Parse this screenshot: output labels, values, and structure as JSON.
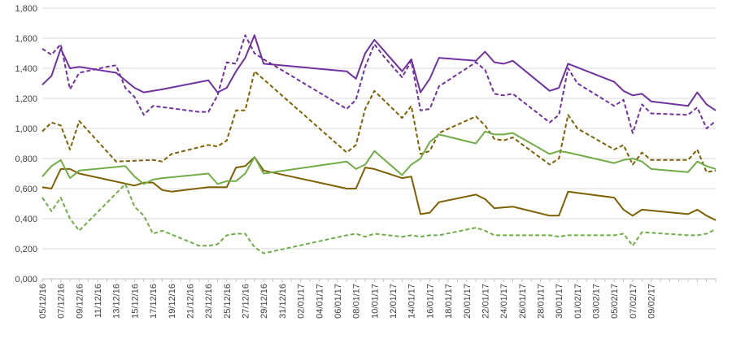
{
  "chart_data": {
    "type": "line",
    "x_ticks": [
      "05/12/16",
      "07/12/16",
      "09/12/16",
      "11/12/16",
      "13/12/16",
      "15/12/16",
      "17/12/16",
      "19/12/16",
      "21/12/16",
      "23/12/16",
      "25/12/16",
      "27/12/16",
      "29/12/16",
      "31/12/16",
      "02/01/17",
      "04/01/17",
      "06/01/17",
      "08/01/17",
      "10/01/17",
      "12/01/17",
      "14/01/17",
      "16/01/17",
      "18/01/17",
      "20/01/17",
      "22/01/17",
      "24/01/17",
      "26/01/17",
      "28/01/17",
      "30/01/17",
      "01/02/17",
      "03/02/17",
      "05/02/17",
      "07/02/17",
      "09/02/17"
    ],
    "y_ticks": [
      "0,000",
      "0,200",
      "0,400",
      "0,600",
      "0,800",
      "1,000",
      "1,200",
      "1,400",
      "1,600",
      "1,800"
    ],
    "ylim": [
      0,
      1.8
    ],
    "x_start_date": "05/12/16",
    "x_end_date": "09/02/17",
    "grid": true,
    "series": [
      {
        "color": "#7030a0",
        "dash": "solid",
        "points": [
          [
            0,
            1.29
          ],
          [
            1,
            1.35
          ],
          [
            2,
            1.53
          ],
          [
            3,
            1.4
          ],
          [
            4,
            1.41
          ],
          [
            8,
            1.37
          ],
          [
            9,
            1.32
          ],
          [
            10,
            1.27
          ],
          [
            11,
            1.24
          ],
          [
            13,
            1.26
          ],
          [
            18,
            1.32
          ],
          [
            19,
            1.24
          ],
          [
            20,
            1.27
          ],
          [
            21,
            1.38
          ],
          [
            22,
            1.47
          ],
          [
            23,
            1.62
          ],
          [
            24,
            1.43
          ],
          [
            33,
            1.38
          ],
          [
            34,
            1.33
          ],
          [
            35,
            1.5
          ],
          [
            36,
            1.59
          ],
          [
            37,
            1.52
          ],
          [
            39,
            1.38
          ],
          [
            40,
            1.46
          ],
          [
            41,
            1.24
          ],
          [
            42,
            1.33
          ],
          [
            43,
            1.47
          ],
          [
            47,
            1.45
          ],
          [
            48,
            1.51
          ],
          [
            49,
            1.44
          ],
          [
            50,
            1.43
          ],
          [
            51,
            1.45
          ],
          [
            55,
            1.25
          ],
          [
            56,
            1.27
          ],
          [
            57,
            1.43
          ],
          [
            62,
            1.31
          ],
          [
            63,
            1.25
          ],
          [
            64,
            1.22
          ],
          [
            65,
            1.23
          ],
          [
            66,
            1.18
          ],
          [
            70,
            1.15
          ],
          [
            71,
            1.24
          ],
          [
            72,
            1.16
          ],
          [
            73,
            1.12
          ]
        ]
      },
      {
        "color": "#7030a0",
        "dash": "dashed",
        "points": [
          [
            0,
            1.53
          ],
          [
            1,
            1.49
          ],
          [
            2,
            1.56
          ],
          [
            3,
            1.26
          ],
          [
            4,
            1.37
          ],
          [
            7,
            1.41
          ],
          [
            8,
            1.42
          ],
          [
            9,
            1.27
          ],
          [
            10,
            1.21
          ],
          [
            11,
            1.09
          ],
          [
            12,
            1.15
          ],
          [
            17,
            1.11
          ],
          [
            18,
            1.11
          ],
          [
            19,
            1.22
          ],
          [
            20,
            1.44
          ],
          [
            21,
            1.43
          ],
          [
            22,
            1.62
          ],
          [
            23,
            1.5
          ],
          [
            24,
            1.46
          ],
          [
            33,
            1.13
          ],
          [
            34,
            1.19
          ],
          [
            35,
            1.41
          ],
          [
            36,
            1.56
          ],
          [
            37,
            1.48
          ],
          [
            39,
            1.34
          ],
          [
            40,
            1.45
          ],
          [
            41,
            1.12
          ],
          [
            42,
            1.13
          ],
          [
            43,
            1.28
          ],
          [
            47,
            1.44
          ],
          [
            48,
            1.39
          ],
          [
            49,
            1.23
          ],
          [
            50,
            1.22
          ],
          [
            51,
            1.23
          ],
          [
            55,
            1.04
          ],
          [
            56,
            1.09
          ],
          [
            57,
            1.4
          ],
          [
            58,
            1.3
          ],
          [
            62,
            1.15
          ],
          [
            63,
            1.19
          ],
          [
            64,
            0.97
          ],
          [
            65,
            1.16
          ],
          [
            66,
            1.1
          ],
          [
            70,
            1.09
          ],
          [
            71,
            1.14
          ],
          [
            72,
            1.0
          ],
          [
            73,
            1.05
          ]
        ]
      },
      {
        "color": "#7f6000",
        "dash": "solid",
        "points": [
          [
            0,
            0.61
          ],
          [
            1,
            0.6
          ],
          [
            2,
            0.73
          ],
          [
            3,
            0.73
          ],
          [
            4,
            0.7
          ],
          [
            10,
            0.62
          ],
          [
            11,
            0.64
          ],
          [
            12,
            0.64
          ],
          [
            13,
            0.59
          ],
          [
            14,
            0.58
          ],
          [
            18,
            0.61
          ],
          [
            20,
            0.61
          ],
          [
            21,
            0.74
          ],
          [
            22,
            0.75
          ],
          [
            23,
            0.81
          ],
          [
            24,
            0.72
          ],
          [
            33,
            0.6
          ],
          [
            34,
            0.6
          ],
          [
            35,
            0.74
          ],
          [
            36,
            0.73
          ],
          [
            39,
            0.67
          ],
          [
            40,
            0.68
          ],
          [
            41,
            0.43
          ],
          [
            42,
            0.44
          ],
          [
            43,
            0.51
          ],
          [
            47,
            0.56
          ],
          [
            48,
            0.53
          ],
          [
            49,
            0.47
          ],
          [
            51,
            0.48
          ],
          [
            55,
            0.42
          ],
          [
            56,
            0.42
          ],
          [
            57,
            0.58
          ],
          [
            62,
            0.54
          ],
          [
            63,
            0.46
          ],
          [
            64,
            0.42
          ],
          [
            65,
            0.46
          ],
          [
            70,
            0.43
          ],
          [
            71,
            0.46
          ],
          [
            72,
            0.42
          ],
          [
            73,
            0.39
          ]
        ]
      },
      {
        "color": "#7f6000",
        "dash": "dashed",
        "points": [
          [
            0,
            0.98
          ],
          [
            1,
            1.04
          ],
          [
            2,
            1.02
          ],
          [
            3,
            0.86
          ],
          [
            4,
            1.05
          ],
          [
            8,
            0.78
          ],
          [
            12,
            0.79
          ],
          [
            13,
            0.78
          ],
          [
            14,
            0.83
          ],
          [
            18,
            0.89
          ],
          [
            19,
            0.88
          ],
          [
            20,
            0.92
          ],
          [
            21,
            1.12
          ],
          [
            22,
            1.12
          ],
          [
            23,
            1.38
          ],
          [
            33,
            0.84
          ],
          [
            34,
            0.89
          ],
          [
            35,
            1.13
          ],
          [
            36,
            1.25
          ],
          [
            39,
            1.07
          ],
          [
            40,
            1.15
          ],
          [
            41,
            0.83
          ],
          [
            42,
            0.85
          ],
          [
            43,
            0.97
          ],
          [
            47,
            1.08
          ],
          [
            48,
            1.02
          ],
          [
            49,
            0.93
          ],
          [
            50,
            0.92
          ],
          [
            51,
            0.94
          ],
          [
            55,
            0.76
          ],
          [
            56,
            0.8
          ],
          [
            57,
            1.09
          ],
          [
            58,
            1.0
          ],
          [
            62,
            0.86
          ],
          [
            63,
            0.89
          ],
          [
            64,
            0.76
          ],
          [
            65,
            0.84
          ],
          [
            66,
            0.79
          ],
          [
            70,
            0.79
          ],
          [
            71,
            0.86
          ],
          [
            72,
            0.71
          ],
          [
            73,
            0.72
          ]
        ]
      },
      {
        "color": "#70ad47",
        "dash": "solid",
        "points": [
          [
            0,
            0.68
          ],
          [
            1,
            0.75
          ],
          [
            2,
            0.79
          ],
          [
            3,
            0.67
          ],
          [
            4,
            0.72
          ],
          [
            9,
            0.75
          ],
          [
            10,
            0.68
          ],
          [
            11,
            0.63
          ],
          [
            12,
            0.66
          ],
          [
            13,
            0.67
          ],
          [
            18,
            0.7
          ],
          [
            19,
            0.63
          ],
          [
            20,
            0.65
          ],
          [
            21,
            0.65
          ],
          [
            22,
            0.7
          ],
          [
            23,
            0.81
          ],
          [
            24,
            0.7
          ],
          [
            33,
            0.78
          ],
          [
            34,
            0.73
          ],
          [
            35,
            0.76
          ],
          [
            36,
            0.85
          ],
          [
            39,
            0.69
          ],
          [
            40,
            0.76
          ],
          [
            41,
            0.8
          ],
          [
            42,
            0.91
          ],
          [
            43,
            0.96
          ],
          [
            47,
            0.9
          ],
          [
            48,
            0.98
          ],
          [
            49,
            0.96
          ],
          [
            50,
            0.96
          ],
          [
            51,
            0.97
          ],
          [
            55,
            0.83
          ],
          [
            56,
            0.85
          ],
          [
            57,
            0.84
          ],
          [
            62,
            0.77
          ],
          [
            63,
            0.79
          ],
          [
            64,
            0.8
          ],
          [
            65,
            0.78
          ],
          [
            66,
            0.73
          ],
          [
            70,
            0.71
          ],
          [
            71,
            0.78
          ],
          [
            72,
            0.75
          ],
          [
            73,
            0.73
          ]
        ]
      },
      {
        "color": "#70ad47",
        "dash": "dashed",
        "points": [
          [
            0,
            0.54
          ],
          [
            1,
            0.45
          ],
          [
            2,
            0.54
          ],
          [
            3,
            0.4
          ],
          [
            4,
            0.32
          ],
          [
            9,
            0.63
          ],
          [
            10,
            0.48
          ],
          [
            11,
            0.42
          ],
          [
            12,
            0.3
          ],
          [
            13,
            0.32
          ],
          [
            17,
            0.22
          ],
          [
            18,
            0.22
          ],
          [
            19,
            0.23
          ],
          [
            20,
            0.29
          ],
          [
            21,
            0.3
          ],
          [
            22,
            0.3
          ],
          [
            23,
            0.21
          ],
          [
            24,
            0.17
          ],
          [
            33,
            0.29
          ],
          [
            34,
            0.3
          ],
          [
            35,
            0.28
          ],
          [
            36,
            0.3
          ],
          [
            39,
            0.28
          ],
          [
            40,
            0.29
          ],
          [
            41,
            0.28
          ],
          [
            42,
            0.29
          ],
          [
            43,
            0.29
          ],
          [
            47,
            0.34
          ],
          [
            48,
            0.32
          ],
          [
            49,
            0.29
          ],
          [
            51,
            0.29
          ],
          [
            55,
            0.29
          ],
          [
            56,
            0.28
          ],
          [
            57,
            0.29
          ],
          [
            62,
            0.29
          ],
          [
            63,
            0.3
          ],
          [
            64,
            0.22
          ],
          [
            65,
            0.31
          ],
          [
            70,
            0.29
          ],
          [
            71,
            0.29
          ],
          [
            72,
            0.3
          ],
          [
            73,
            0.33
          ]
        ]
      }
    ]
  }
}
